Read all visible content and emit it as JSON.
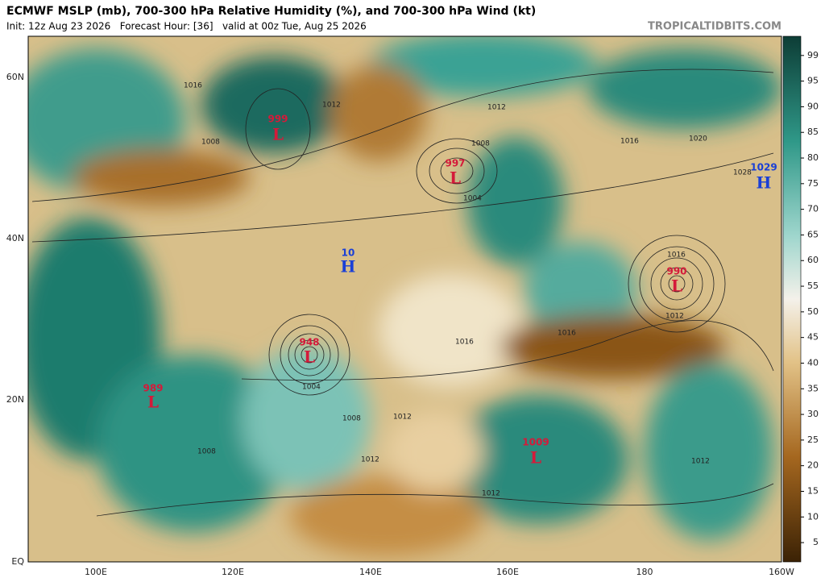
{
  "header": {
    "title": "ECMWF MSLP (mb), 700-300 hPa Relative Humidity (%), and 700-300 hPa Wind (kt)",
    "subtitle": "Init: 12z Aug 23 2026   Forecast Hour: [36]   valid at 00z Tue, Aug 25 2026",
    "watermark": "TROPICALTIDBITS.COM"
  },
  "map": {
    "lat_labels": [
      "60N",
      "40N",
      "20N",
      "EQ"
    ],
    "lon_labels": [
      "100E",
      "120E",
      "140E",
      "160E",
      "180",
      "160W"
    ],
    "centers": [
      {
        "value": "999",
        "symbol": "L"
      },
      {
        "value": "997",
        "symbol": "L"
      },
      {
        "value": "1029",
        "symbol": "H"
      },
      {
        "value": "10",
        "symbol": "H"
      },
      {
        "value": "990",
        "symbol": "L"
      },
      {
        "value": "948",
        "symbol": "L"
      },
      {
        "value": "989",
        "symbol": "L"
      },
      {
        "value": "1009",
        "symbol": "L"
      }
    ],
    "isobar_labels": [
      "1016",
      "1012",
      "1008",
      "1004",
      "1008",
      "1012",
      "1016",
      "1020",
      "1016",
      "1012",
      "1016",
      "1016",
      "1004",
      "1008",
      "1012",
      "1012",
      "1012",
      "1008",
      "1028",
      "1012"
    ]
  },
  "colorbar": {
    "ticks": [
      99,
      95,
      90,
      85,
      80,
      75,
      70,
      65,
      60,
      55,
      50,
      45,
      40,
      35,
      30,
      25,
      20,
      15,
      10,
      5
    ]
  }
}
